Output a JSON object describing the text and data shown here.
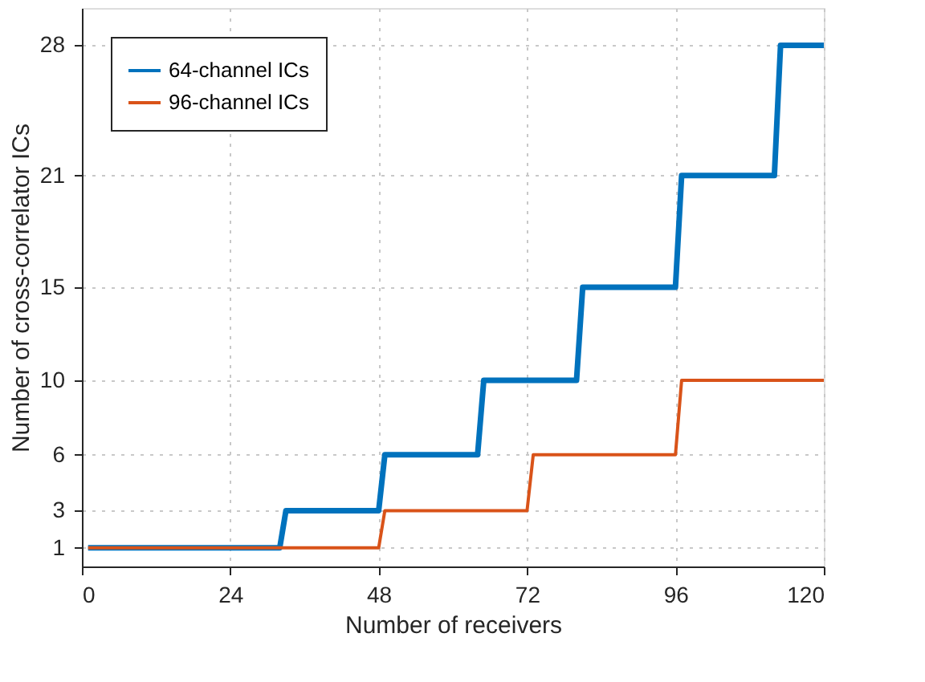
{
  "chart_data": {
    "type": "line",
    "xlabel": "Number of receivers",
    "ylabel": "Number of cross-correlator ICs",
    "xlim": [
      0,
      120
    ],
    "xticks": [
      0,
      24,
      48,
      72,
      96,
      120
    ],
    "ylim": [
      0,
      30
    ],
    "yticks": [
      1,
      3,
      6,
      10,
      15,
      21,
      28
    ],
    "grid": true,
    "legend": "top left",
    "marker": "none",
    "line_style": "solid",
    "series": [
      {
        "name": "64-channel ICs",
        "color": "#0072bd",
        "x": [
          1,
          32,
          33,
          48,
          49,
          64,
          65,
          80,
          81,
          96,
          97,
          112,
          113,
          120
        ],
        "values": [
          1,
          1,
          3,
          3,
          6,
          6,
          10,
          10,
          15,
          15,
          21,
          21,
          28,
          28
        ]
      },
      {
        "name": "96-channel ICs",
        "color": "#d95319",
        "x": [
          1,
          48,
          49,
          72,
          73,
          96,
          97,
          120
        ],
        "values": [
          1,
          1,
          3,
          3,
          6,
          6,
          10,
          10
        ]
      }
    ]
  }
}
